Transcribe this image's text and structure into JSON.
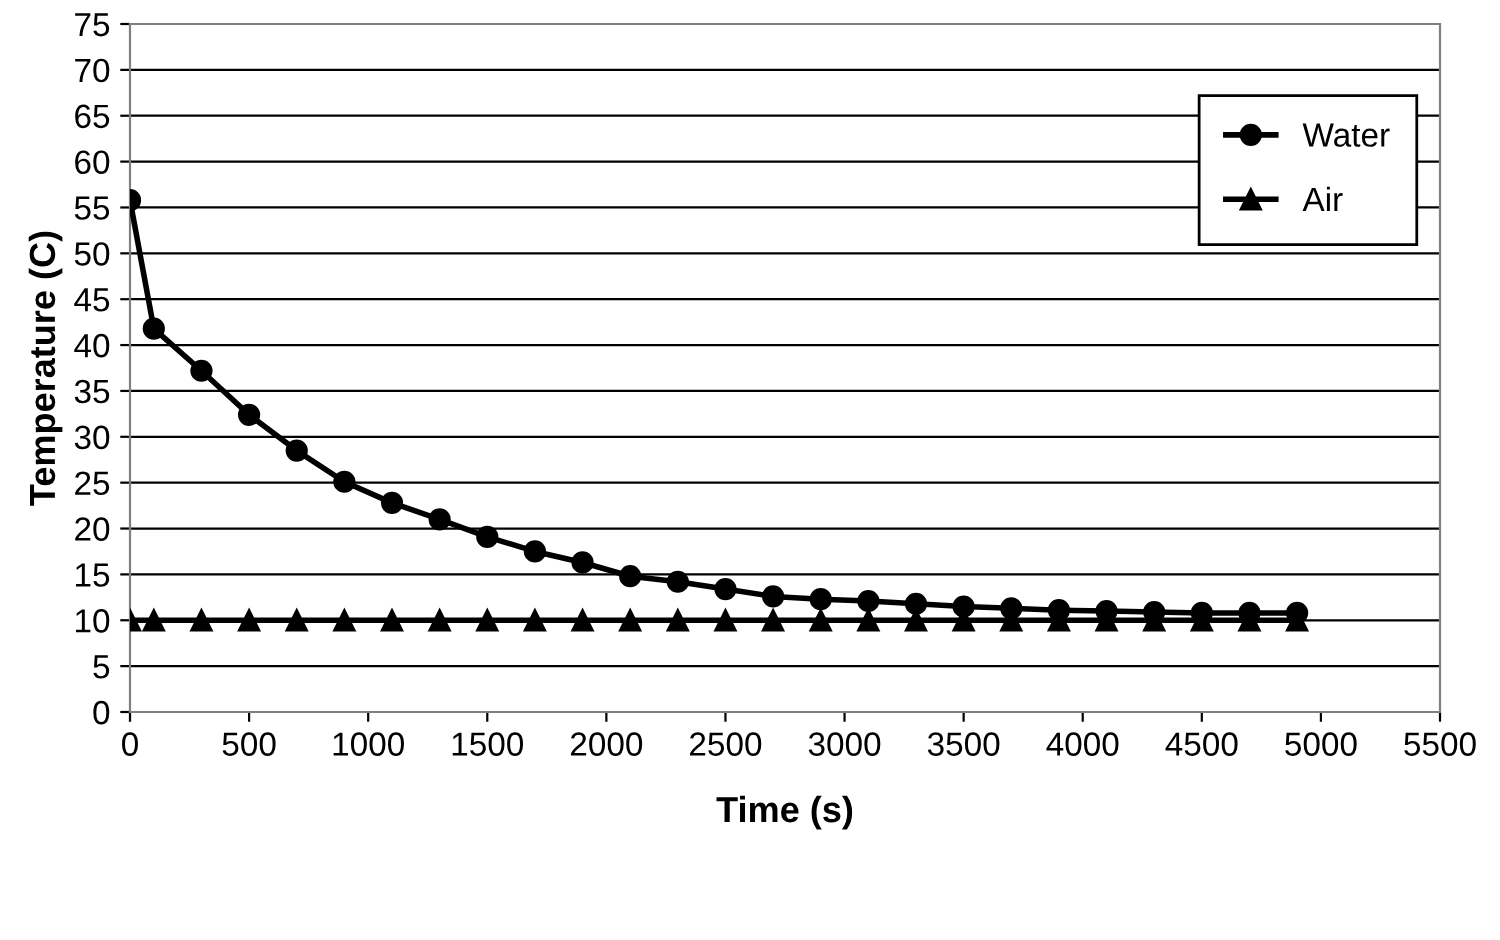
{
  "chart_data": {
    "type": "line",
    "xlabel": "Time (s)",
    "ylabel": "Temperature (C)",
    "x": [
      0,
      100,
      300,
      500,
      700,
      900,
      1100,
      1300,
      1500,
      1700,
      1900,
      2100,
      2300,
      2500,
      2700,
      2900,
      3100,
      3300,
      3500,
      3700,
      3900,
      4100,
      4300,
      4500,
      4700,
      4900
    ],
    "series": [
      {
        "name": "Water",
        "color": "#000000",
        "marker": "circle",
        "values": [
          55.8,
          41.8,
          37.2,
          32.4,
          28.5,
          25.1,
          22.8,
          21.0,
          19.1,
          17.5,
          16.3,
          14.8,
          14.2,
          13.4,
          12.6,
          12.3,
          12.1,
          11.8,
          11.5,
          11.3,
          11.1,
          11.0,
          10.9,
          10.8,
          10.8,
          10.8
        ]
      },
      {
        "name": "Air",
        "color": "#000000",
        "marker": "triangle",
        "values": [
          10,
          10,
          10,
          10,
          10,
          10,
          10,
          10,
          10,
          10,
          10,
          10,
          10,
          10,
          10,
          10,
          10,
          10,
          10,
          10,
          10,
          10,
          10,
          10,
          10,
          10
        ]
      }
    ],
    "xlim": [
      0,
      5500
    ],
    "xticks": [
      0,
      500,
      1000,
      1500,
      2000,
      2500,
      3000,
      3500,
      4000,
      4500,
      5000,
      5500
    ],
    "ylim": [
      0,
      75
    ],
    "yticks": [
      0,
      5,
      10,
      15,
      20,
      25,
      30,
      35,
      40,
      45,
      50,
      55,
      60,
      65,
      70,
      75
    ],
    "grid": "y",
    "legend": "top right",
    "line_style": "solid"
  }
}
